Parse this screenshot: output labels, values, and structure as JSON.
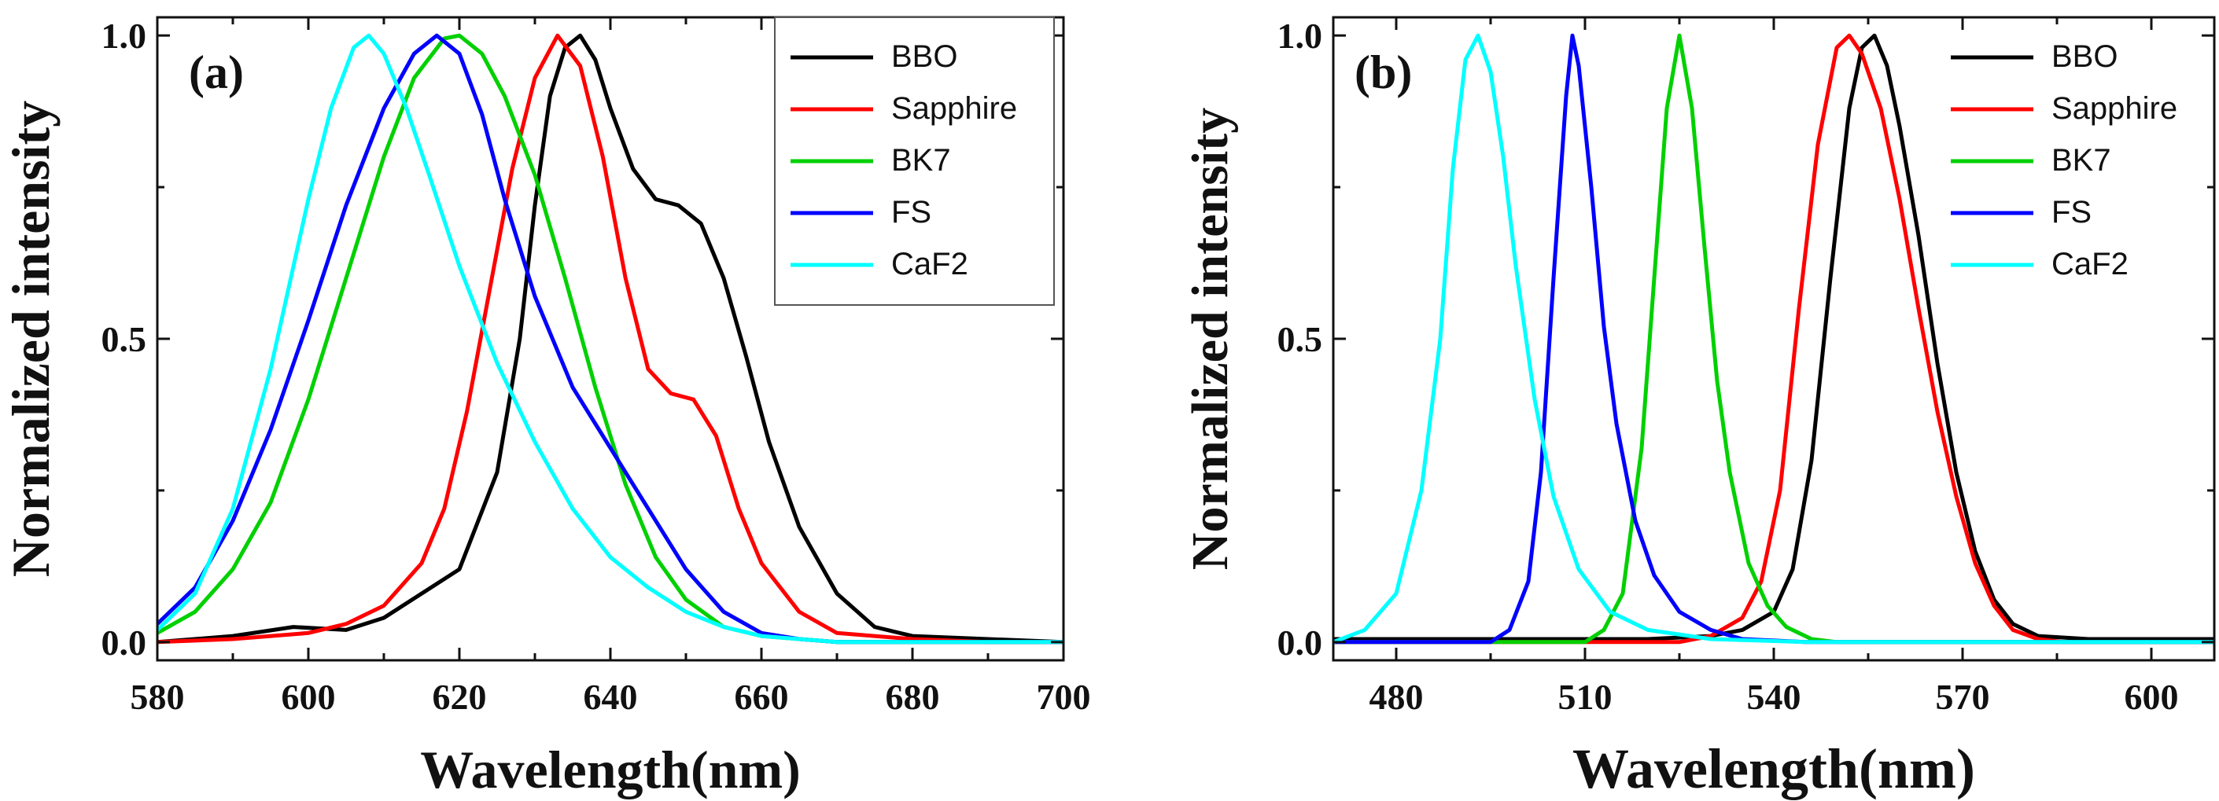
{
  "chart_data": [
    {
      "type": "line",
      "panel_label": "(a)",
      "xlabel": "Wavelength(nm)",
      "ylabel": "Normalized intensity",
      "xlim": [
        580,
        700
      ],
      "ylim": [
        -0.03,
        1.03
      ],
      "xticks": [
        580,
        600,
        620,
        640,
        660,
        680,
        700
      ],
      "yticks": [
        0.0,
        0.5,
        1.0
      ],
      "ytick_labels": [
        "0.0",
        "0.5",
        "1.0"
      ],
      "legend_position": "top-right",
      "series": [
        {
          "name": "BBO",
          "color": "#000000",
          "x": [
            580,
            590,
            598,
            605,
            610,
            615,
            620,
            625,
            628,
            630,
            632,
            634,
            636,
            638,
            640,
            643,
            646,
            649,
            652,
            655,
            658,
            661,
            665,
            670,
            675,
            680,
            690,
            700
          ],
          "y": [
            0.0,
            0.01,
            0.025,
            0.02,
            0.04,
            0.08,
            0.12,
            0.28,
            0.5,
            0.72,
            0.9,
            0.98,
            1.0,
            0.96,
            0.88,
            0.78,
            0.73,
            0.72,
            0.69,
            0.6,
            0.47,
            0.33,
            0.19,
            0.08,
            0.025,
            0.01,
            0.005,
            0.0
          ]
        },
        {
          "name": "Sapphire",
          "color": "#ff0000",
          "x": [
            580,
            590,
            600,
            605,
            610,
            615,
            618,
            621,
            624,
            627,
            630,
            633,
            636,
            639,
            642,
            645,
            648,
            651,
            654,
            657,
            660,
            665,
            670,
            680,
            690,
            700
          ],
          "y": [
            0.0,
            0.005,
            0.015,
            0.03,
            0.06,
            0.13,
            0.22,
            0.38,
            0.58,
            0.78,
            0.93,
            1.0,
            0.95,
            0.8,
            0.6,
            0.45,
            0.41,
            0.4,
            0.34,
            0.22,
            0.13,
            0.05,
            0.015,
            0.005,
            0.0,
            0.0
          ]
        },
        {
          "name": "BK7",
          "color": "#00d000",
          "x": [
            580,
            585,
            590,
            595,
            600,
            605,
            610,
            614,
            618,
            620,
            623,
            626,
            630,
            634,
            638,
            642,
            646,
            650,
            655,
            660,
            665,
            670,
            680,
            690,
            700
          ],
          "y": [
            0.015,
            0.05,
            0.12,
            0.23,
            0.4,
            0.6,
            0.8,
            0.93,
            0.995,
            1.0,
            0.97,
            0.9,
            0.77,
            0.6,
            0.42,
            0.26,
            0.14,
            0.07,
            0.025,
            0.01,
            0.005,
            0.0,
            0.0,
            0.0,
            0.0
          ]
        },
        {
          "name": "FS",
          "color": "#0000ff",
          "x": [
            580,
            585,
            590,
            595,
            600,
            605,
            610,
            614,
            617,
            620,
            623,
            626,
            630,
            635,
            640,
            645,
            650,
            655,
            660,
            665,
            670,
            680,
            690,
            700
          ],
          "y": [
            0.03,
            0.09,
            0.2,
            0.35,
            0.53,
            0.72,
            0.88,
            0.97,
            1.0,
            0.97,
            0.87,
            0.73,
            0.57,
            0.42,
            0.32,
            0.22,
            0.12,
            0.05,
            0.015,
            0.005,
            0.0,
            0.0,
            0.0,
            0.0
          ]
        },
        {
          "name": "CaF2",
          "color": "#00ffff",
          "x": [
            580,
            585,
            590,
            595,
            600,
            603,
            606,
            608,
            610,
            613,
            616,
            620,
            625,
            630,
            635,
            640,
            645,
            650,
            655,
            660,
            665,
            670,
            680,
            690,
            700
          ],
          "y": [
            0.02,
            0.08,
            0.22,
            0.45,
            0.73,
            0.88,
            0.98,
            1.0,
            0.97,
            0.88,
            0.77,
            0.62,
            0.46,
            0.33,
            0.22,
            0.14,
            0.09,
            0.05,
            0.025,
            0.01,
            0.005,
            0.0,
            0.0,
            0.0,
            0.0
          ]
        }
      ]
    },
    {
      "type": "line",
      "panel_label": "(b)",
      "xlabel": "Wavelength(nm)",
      "ylabel": "Normalized intensity",
      "xlim": [
        470,
        610
      ],
      "ylim": [
        -0.03,
        1.03
      ],
      "xticks": [
        480,
        510,
        540,
        570,
        600
      ],
      "yticks": [
        0.0,
        0.5,
        1.0
      ],
      "ytick_labels": [
        "0.0",
        "0.5",
        "1.0"
      ],
      "legend_position": "top-right",
      "series": [
        {
          "name": "BBO",
          "color": "#000000",
          "x": [
            470,
            500,
            520,
            530,
            535,
            540,
            543,
            546,
            549,
            552,
            554,
            556,
            558,
            560,
            563,
            566,
            569,
            572,
            575,
            578,
            582,
            590,
            610
          ],
          "y": [
            0.005,
            0.005,
            0.005,
            0.01,
            0.02,
            0.05,
            0.12,
            0.3,
            0.6,
            0.88,
            0.98,
            1.0,
            0.95,
            0.85,
            0.67,
            0.46,
            0.28,
            0.15,
            0.07,
            0.03,
            0.01,
            0.005,
            0.005
          ]
        },
        {
          "name": "Sapphire",
          "color": "#ff0000",
          "x": [
            470,
            525,
            530,
            535,
            538,
            541,
            544,
            547,
            550,
            552,
            554,
            557,
            560,
            563,
            566,
            569,
            572,
            575,
            578,
            582,
            586,
            600,
            610
          ],
          "y": [
            0.0,
            0.0,
            0.01,
            0.04,
            0.1,
            0.25,
            0.55,
            0.82,
            0.98,
            1.0,
            0.97,
            0.88,
            0.73,
            0.55,
            0.38,
            0.24,
            0.13,
            0.06,
            0.02,
            0.005,
            0.0,
            0.0,
            0.0
          ]
        },
        {
          "name": "BK7",
          "color": "#00d000",
          "x": [
            470,
            510,
            513,
            516,
            519,
            521,
            523,
            525,
            527,
            529,
            531,
            533,
            536,
            539,
            542,
            546,
            550,
            610
          ],
          "y": [
            0.0,
            0.0,
            0.02,
            0.08,
            0.32,
            0.6,
            0.88,
            1.0,
            0.88,
            0.65,
            0.43,
            0.28,
            0.13,
            0.06,
            0.025,
            0.005,
            0.0,
            0.0
          ]
        },
        {
          "name": "FS",
          "color": "#0000ff",
          "x": [
            470,
            495,
            498,
            501,
            503,
            505,
            507,
            508,
            509,
            511,
            513,
            515,
            518,
            521,
            525,
            530,
            535,
            545,
            610
          ],
          "y": [
            0.0,
            0.0,
            0.02,
            0.1,
            0.28,
            0.6,
            0.9,
            1.0,
            0.95,
            0.75,
            0.52,
            0.36,
            0.2,
            0.11,
            0.05,
            0.02,
            0.005,
            0.0,
            0.0
          ]
        },
        {
          "name": "CaF2",
          "color": "#00ffff",
          "x": [
            470,
            475,
            480,
            484,
            487,
            489,
            491,
            493,
            495,
            497,
            499,
            502,
            505,
            509,
            514,
            520,
            530,
            545,
            610
          ],
          "y": [
            0.0,
            0.02,
            0.08,
            0.25,
            0.5,
            0.78,
            0.96,
            1.0,
            0.94,
            0.8,
            0.62,
            0.4,
            0.24,
            0.12,
            0.05,
            0.02,
            0.005,
            0.0,
            0.0
          ]
        }
      ]
    }
  ]
}
